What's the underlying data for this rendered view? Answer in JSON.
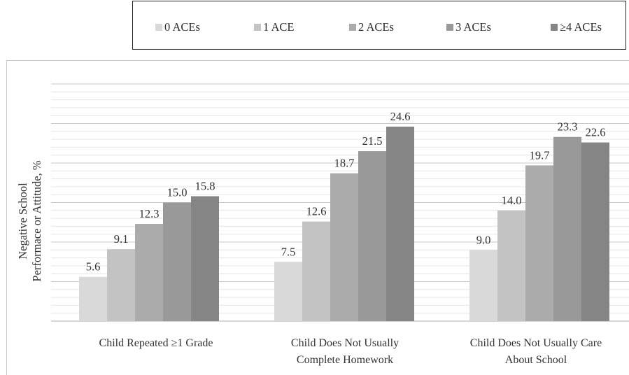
{
  "legend": {
    "items": [
      {
        "label": "0 ACEs",
        "color": "#d9d9d9"
      },
      {
        "label": "1 ACE",
        "color": "#c3c3c3"
      },
      {
        "label": "2 ACEs",
        "color": "#ababab"
      },
      {
        "label": "3 ACEs",
        "color": "#999999"
      },
      {
        "label": "≥4 ACEs",
        "color": "#858585"
      }
    ]
  },
  "chart_data": {
    "type": "bar",
    "categories": [
      [
        "Child Repeated ≥1 Grade"
      ],
      [
        "Child Does Not Usually",
        "Complete Homework"
      ],
      [
        "Child Does Not Usually Care",
        "About School"
      ]
    ],
    "series": [
      {
        "name": "0 ACEs",
        "values": [
          5.6,
          7.5,
          9.0
        ]
      },
      {
        "name": "1 ACE",
        "values": [
          9.1,
          12.6,
          14.0
        ]
      },
      {
        "name": "2 ACEs",
        "values": [
          12.3,
          18.7,
          19.7
        ]
      },
      {
        "name": "3 ACEs",
        "values": [
          15.0,
          21.5,
          23.3
        ]
      },
      {
        "name": "≥4 ACEs",
        "values": [
          15.8,
          24.6,
          22.6
        ]
      }
    ],
    "value_labels": [
      [
        "5.6",
        "7.5",
        "9.0"
      ],
      [
        "9.1",
        "12.6",
        "14.0"
      ],
      [
        "12.3",
        "18.7",
        "19.7"
      ],
      [
        "15.0",
        "21.5",
        "23.3"
      ],
      [
        "15.8",
        "24.6",
        "22.6"
      ]
    ],
    "ylabel": [
      "Negative School",
      "Performace or Attitude, %"
    ],
    "ylim": [
      0,
      30
    ],
    "grid": true,
    "legend_position": "top-right"
  }
}
